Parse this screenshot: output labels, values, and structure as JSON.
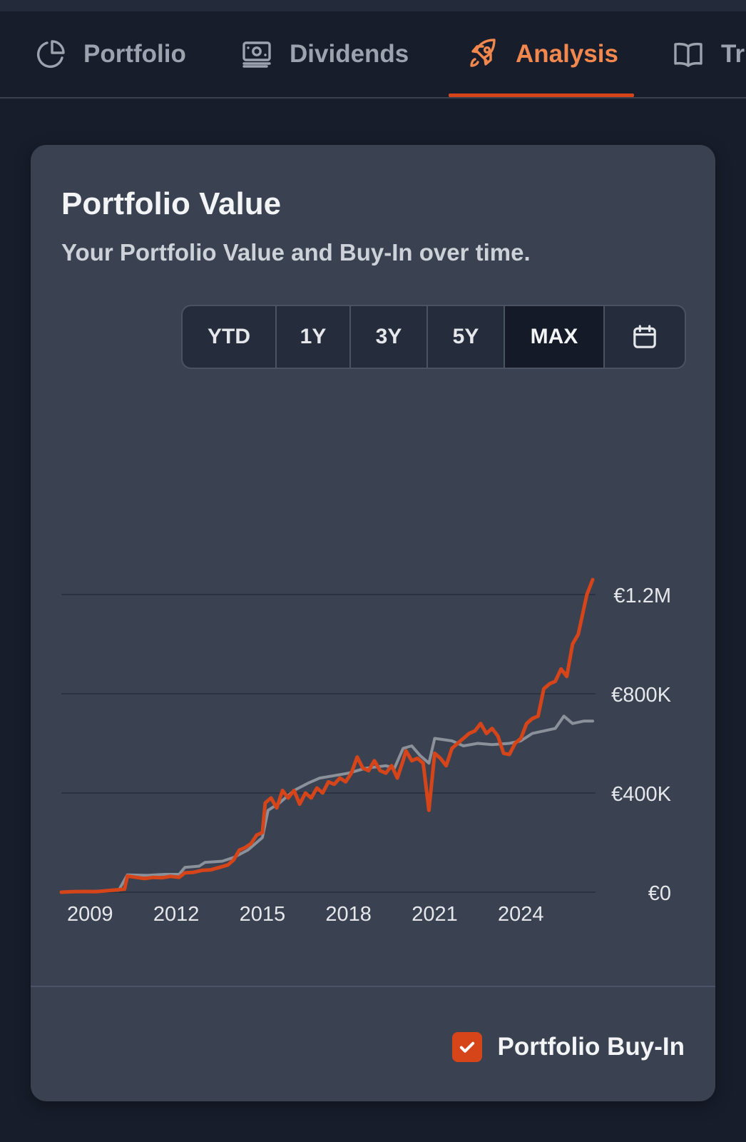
{
  "tabs": [
    {
      "label": "Portfolio",
      "icon": "pie-chart-icon",
      "active": false
    },
    {
      "label": "Dividends",
      "icon": "banknote-icon",
      "active": false
    },
    {
      "label": "Analysis",
      "icon": "rocket-icon",
      "active": true
    },
    {
      "label": "Tr",
      "icon": "book-icon",
      "active": false
    }
  ],
  "card": {
    "title": "Portfolio Value",
    "subtitle": "Your Portfolio Value and Buy-In over time."
  },
  "range_selector": {
    "options": [
      "YTD",
      "1Y",
      "3Y",
      "5Y",
      "MAX"
    ],
    "selected": "MAX",
    "calendar_icon": "calendar-icon"
  },
  "legend": {
    "label": "Portfolio Buy-In",
    "checked": true
  },
  "colors": {
    "accent": "#d6451a",
    "active_tab": "#f2884d",
    "buy_in_line": "#8b919b",
    "value_line": "#d6451a"
  },
  "chart_data": {
    "type": "line",
    "title": "Portfolio Value",
    "y_tick_labels": [
      "€0",
      "€400K",
      "€800K",
      "€1.2M"
    ],
    "y_ticks": [
      0,
      400000,
      800000,
      1200000
    ],
    "x_tick_labels": [
      "2009",
      "2012",
      "2015",
      "2018",
      "2021",
      "2024"
    ],
    "x_ticks": [
      2009,
      2012,
      2015,
      2018,
      2021,
      2024
    ],
    "xlim": [
      2008,
      2026.6
    ],
    "ylim": [
      0,
      1200000
    ],
    "grid": true,
    "y_axis_position": "right",
    "series": [
      {
        "name": "Portfolio Value",
        "color": "#d6451a",
        "points": [
          [
            2008.0,
            0
          ],
          [
            2008.4,
            2000
          ],
          [
            2008.8,
            3000
          ],
          [
            2009.2,
            2000
          ],
          [
            2009.6,
            6000
          ],
          [
            2010.0,
            10000
          ],
          [
            2010.2,
            12000
          ],
          [
            2010.3,
            65000
          ],
          [
            2010.6,
            60000
          ],
          [
            2010.9,
            55000
          ],
          [
            2011.2,
            60000
          ],
          [
            2011.5,
            58000
          ],
          [
            2011.8,
            64000
          ],
          [
            2012.1,
            60000
          ],
          [
            2012.3,
            78000
          ],
          [
            2012.6,
            80000
          ],
          [
            2012.9,
            88000
          ],
          [
            2013.2,
            90000
          ],
          [
            2013.5,
            100000
          ],
          [
            2013.8,
            110000
          ],
          [
            2014.0,
            130000
          ],
          [
            2014.2,
            170000
          ],
          [
            2014.4,
            180000
          ],
          [
            2014.6,
            195000
          ],
          [
            2014.8,
            230000
          ],
          [
            2015.0,
            240000
          ],
          [
            2015.1,
            360000
          ],
          [
            2015.3,
            380000
          ],
          [
            2015.5,
            340000
          ],
          [
            2015.7,
            410000
          ],
          [
            2015.9,
            380000
          ],
          [
            2016.1,
            410000
          ],
          [
            2016.3,
            355000
          ],
          [
            2016.5,
            400000
          ],
          [
            2016.7,
            380000
          ],
          [
            2016.9,
            420000
          ],
          [
            2017.1,
            400000
          ],
          [
            2017.3,
            445000
          ],
          [
            2017.5,
            435000
          ],
          [
            2017.7,
            460000
          ],
          [
            2017.9,
            445000
          ],
          [
            2018.1,
            480000
          ],
          [
            2018.3,
            545000
          ],
          [
            2018.5,
            500000
          ],
          [
            2018.7,
            490000
          ],
          [
            2018.9,
            530000
          ],
          [
            2019.1,
            490000
          ],
          [
            2019.3,
            480000
          ],
          [
            2019.5,
            510000
          ],
          [
            2019.7,
            460000
          ],
          [
            2019.9,
            530000
          ],
          [
            2020.0,
            570000
          ],
          [
            2020.2,
            530000
          ],
          [
            2020.4,
            540000
          ],
          [
            2020.6,
            520000
          ],
          [
            2020.8,
            330000
          ],
          [
            2021.0,
            560000
          ],
          [
            2021.2,
            540000
          ],
          [
            2021.4,
            510000
          ],
          [
            2021.6,
            580000
          ],
          [
            2021.8,
            600000
          ],
          [
            2022.0,
            620000
          ],
          [
            2022.2,
            640000
          ],
          [
            2022.4,
            650000
          ],
          [
            2022.6,
            680000
          ],
          [
            2022.8,
            640000
          ],
          [
            2023.0,
            660000
          ],
          [
            2023.2,
            630000
          ],
          [
            2023.4,
            560000
          ],
          [
            2023.6,
            555000
          ],
          [
            2023.8,
            600000
          ],
          [
            2024.0,
            620000
          ],
          [
            2024.2,
            680000
          ],
          [
            2024.4,
            700000
          ],
          [
            2024.6,
            710000
          ],
          [
            2024.8,
            820000
          ],
          [
            2025.0,
            840000
          ],
          [
            2025.2,
            850000
          ],
          [
            2025.4,
            900000
          ],
          [
            2025.6,
            870000
          ],
          [
            2025.8,
            1000000
          ],
          [
            2026.0,
            1040000
          ],
          [
            2026.3,
            1200000
          ],
          [
            2026.5,
            1260000
          ]
        ]
      },
      {
        "name": "Portfolio Buy-In",
        "color": "#8b919b",
        "points": [
          [
            2008.0,
            0
          ],
          [
            2009.0,
            3000
          ],
          [
            2010.0,
            8000
          ],
          [
            2010.3,
            70000
          ],
          [
            2011.0,
            68000
          ],
          [
            2011.6,
            72000
          ],
          [
            2012.1,
            72000
          ],
          [
            2012.3,
            100000
          ],
          [
            2012.8,
            105000
          ],
          [
            2013.0,
            120000
          ],
          [
            2013.6,
            125000
          ],
          [
            2014.0,
            140000
          ],
          [
            2014.5,
            170000
          ],
          [
            2015.0,
            220000
          ],
          [
            2015.2,
            330000
          ],
          [
            2015.6,
            360000
          ],
          [
            2016.1,
            410000
          ],
          [
            2016.6,
            440000
          ],
          [
            2017.0,
            460000
          ],
          [
            2017.5,
            470000
          ],
          [
            2018.0,
            480000
          ],
          [
            2018.6,
            500000
          ],
          [
            2019.3,
            510000
          ],
          [
            2019.6,
            500000
          ],
          [
            2019.9,
            580000
          ],
          [
            2020.2,
            590000
          ],
          [
            2020.5,
            550000
          ],
          [
            2020.8,
            520000
          ],
          [
            2021.0,
            620000
          ],
          [
            2021.6,
            610000
          ],
          [
            2022.0,
            590000
          ],
          [
            2022.5,
            600000
          ],
          [
            2023.0,
            595000
          ],
          [
            2023.6,
            600000
          ],
          [
            2024.0,
            610000
          ],
          [
            2024.4,
            640000
          ],
          [
            2024.8,
            650000
          ],
          [
            2025.2,
            660000
          ],
          [
            2025.5,
            710000
          ],
          [
            2025.8,
            680000
          ],
          [
            2026.2,
            690000
          ],
          [
            2026.5,
            690000
          ]
        ]
      }
    ]
  }
}
